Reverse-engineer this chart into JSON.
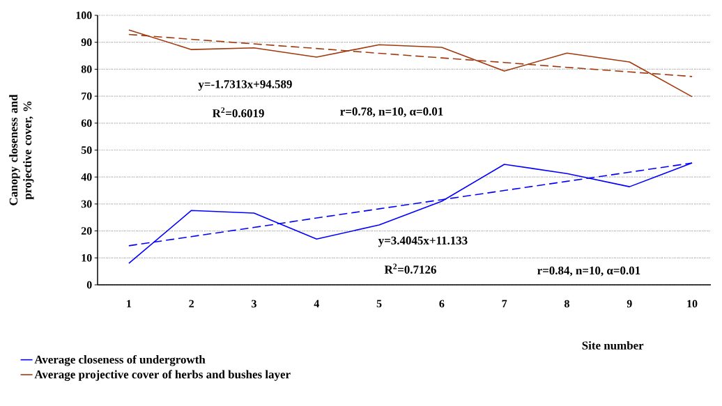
{
  "chart_data": {
    "type": "line",
    "x": [
      1,
      2,
      3,
      4,
      5,
      6,
      7,
      8,
      9,
      10
    ],
    "series": [
      {
        "name": "Average closeness of undergrowth",
        "color": "#0000ff",
        "line_style": "solid",
        "values": [
          8,
          27.6,
          26.6,
          17,
          22.2,
          31,
          44.7,
          41.3,
          36.4,
          45.2
        ]
      },
      {
        "name": "Average projective cover of herbs and bushes layer",
        "color": "#a0380c",
        "line_style": "solid",
        "values": [
          94.6,
          87.3,
          87.9,
          84.5,
          89.1,
          88.1,
          79.3,
          86,
          82.7,
          69.8
        ]
      },
      {
        "type": "line",
        "color": "#0000ff",
        "line_style": "dashed",
        "values": [
          14.5,
          17.9,
          21.3,
          24.8,
          28.2,
          31.6,
          35,
          38.4,
          41.8,
          45.2
        ]
      },
      {
        "type": "line",
        "color": "#a0380c",
        "line_style": "dashed",
        "values": [
          92.9,
          91.1,
          89.4,
          87.7,
          85.9,
          84.2,
          82.5,
          80.7,
          79,
          77.3
        ]
      }
    ],
    "xlabel": "Site number",
    "ylabel": "Canopy closeness and projective cover, %",
    "xlim": [
      0.5,
      10.3
    ],
    "xticks": [
      1,
      2,
      3,
      4,
      5,
      6,
      7,
      8,
      9,
      10
    ],
    "ylim": [
      0,
      100
    ],
    "yticks": [
      0,
      10,
      20,
      30,
      40,
      50,
      60,
      70,
      80,
      90,
      100
    ],
    "grid": "y",
    "legend": "bottom",
    "marker": "none",
    "annotations": [
      "y=-1.7313x+94.589",
      "R$^{2}$=0.6019",
      "r=0.78, n=10, α=0.01",
      "y=3.4045x+11.133",
      "R$^{2}$=0.7126",
      "r=0.84, n=10, α=0.01"
    ]
  }
}
